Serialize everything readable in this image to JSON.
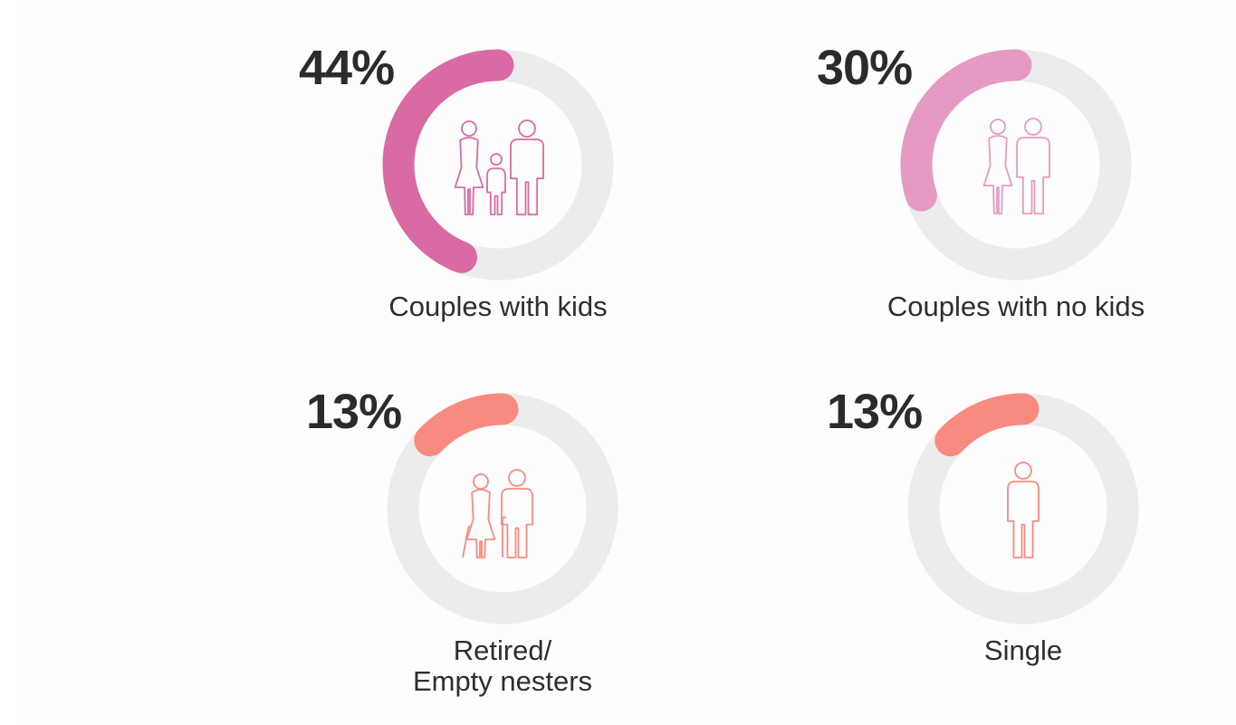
{
  "chart_data": {
    "type": "donut",
    "track_color": "#ececec",
    "items": [
      {
        "id": "couples-with-kids",
        "value": 44,
        "value_label": "44%",
        "label_lines": [
          "Couples with kids"
        ],
        "color": "#d96aa3",
        "icon": "family-icon"
      },
      {
        "id": "couples-no-kids",
        "value": 30,
        "value_label": "30%",
        "label_lines": [
          "Couples with no kids"
        ],
        "color": "#e69ac3",
        "icon": "couple-icon"
      },
      {
        "id": "retired",
        "value": 13,
        "value_label": "13%",
        "label_lines": [
          "Retired/",
          "Empty nesters"
        ],
        "color": "#f98a80",
        "icon": "elderly-couple-icon"
      },
      {
        "id": "single",
        "value": 13,
        "value_label": "13%",
        "label_lines": [
          "Single"
        ],
        "color": "#f98a80",
        "icon": "single-person-icon"
      }
    ]
  }
}
